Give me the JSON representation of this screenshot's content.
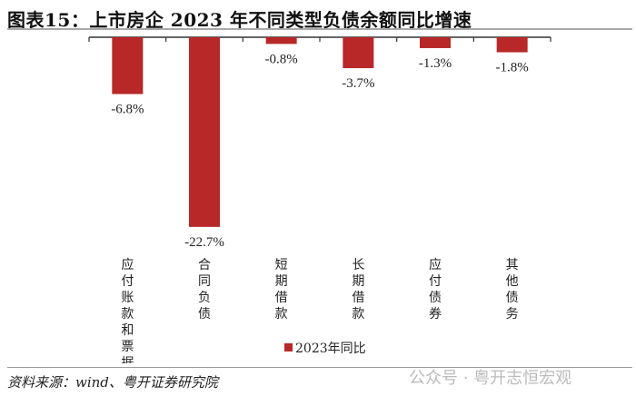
{
  "title": "图表15：上市房企 2023 年不同类型负债余额同比增速",
  "source": "资料来源：wind、粤开证券研究院",
  "watermark": "公众号 · 粤开志恒宏观",
  "chart_data": {
    "type": "bar",
    "categories": [
      "应付账款和票据",
      "合同负债",
      "短期借款",
      "长期借款",
      "应付债券",
      "其他债务"
    ],
    "series": [
      {
        "name": "2023年同比",
        "values": [
          -6.8,
          -22.7,
          -0.8,
          -3.7,
          -1.3,
          -1.8
        ],
        "color": "#b82828"
      }
    ],
    "data_labels": [
      "-6.8%",
      "-22.7%",
      "-0.8%",
      "-3.7%",
      "-1.3%",
      "-1.8%"
    ],
    "ylim": [
      -22.7,
      0
    ],
    "grid": false,
    "legend": "bottom-center"
  }
}
